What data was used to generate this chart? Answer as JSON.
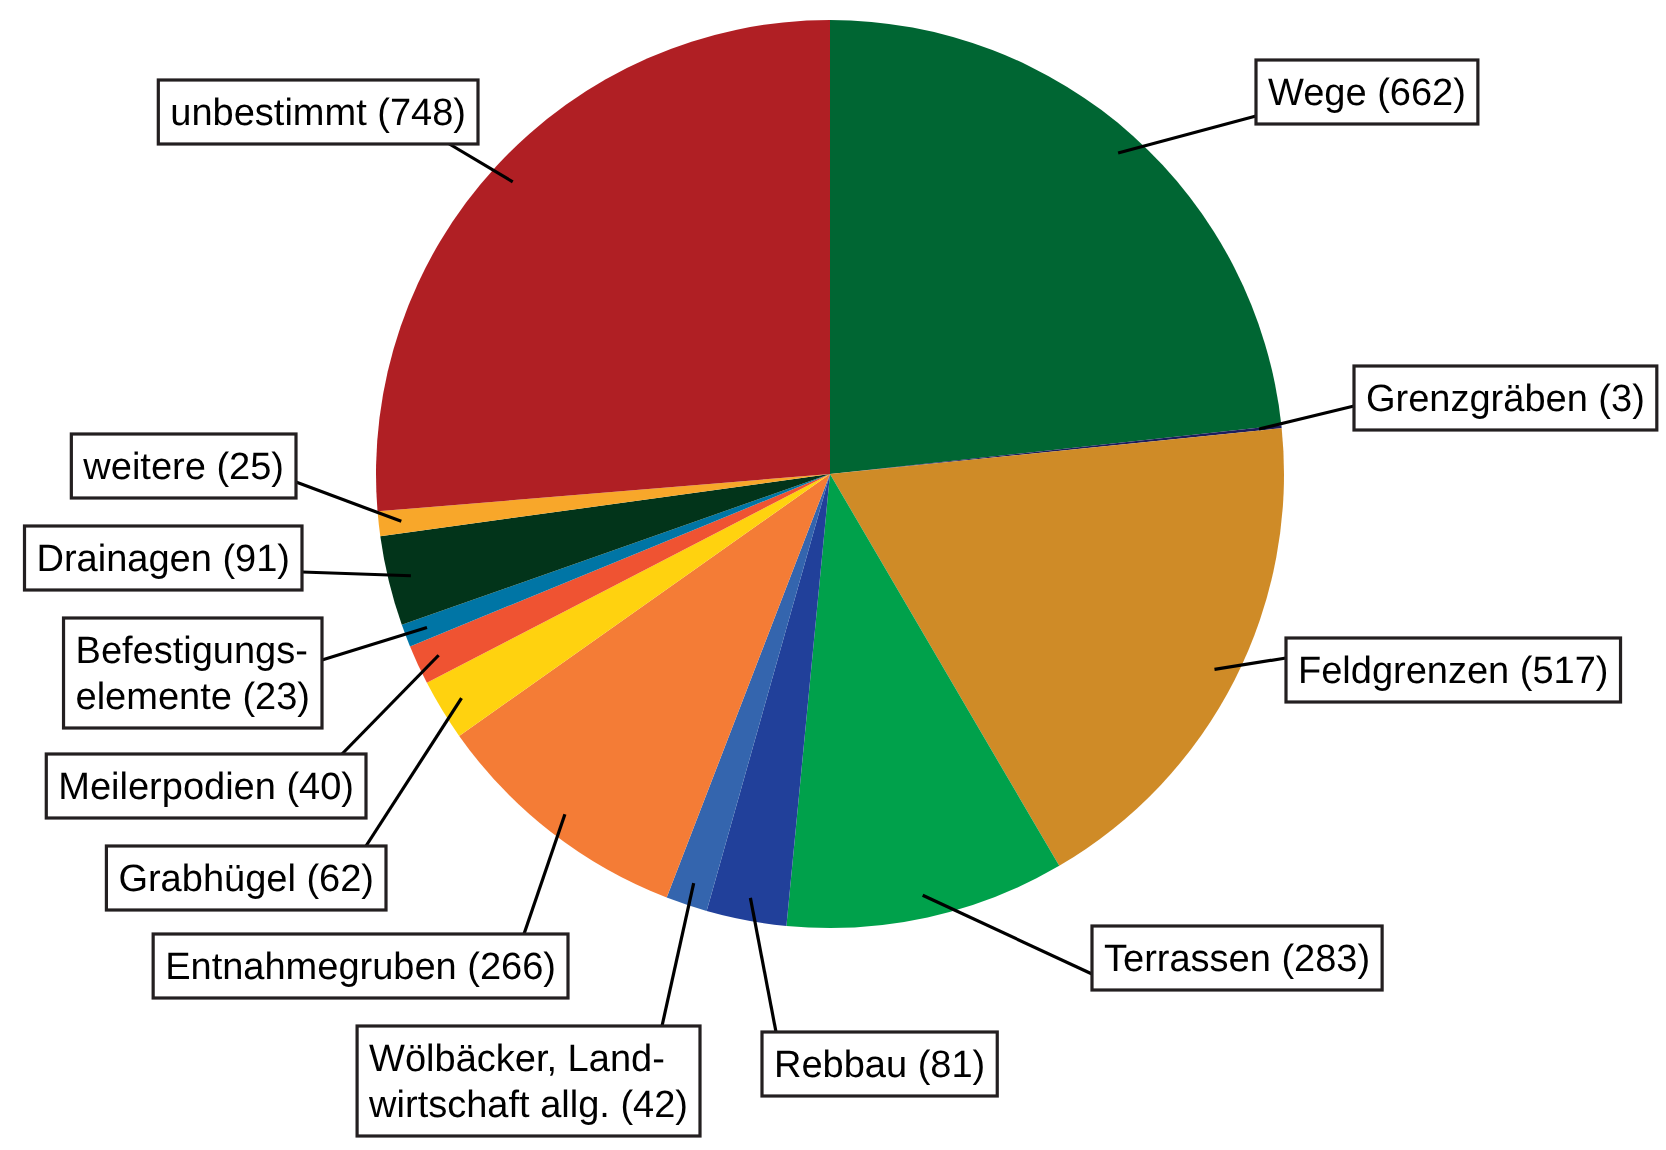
{
  "chart_data": {
    "type": "pie",
    "categories": [
      "Wege (662)",
      "Grenzgräben (3)",
      "Feldgrenzen (517)",
      "Terrassen (283)",
      "Rebbau (81)",
      "Wölbäcker, Land-\nwirtschaft allg. (42)",
      "Entnahmegruben (266)",
      "Grabhügel (62)",
      "Meilerpodien (40)",
      "Befestigungs-\nelemente (23)",
      "Drainagen (91)",
      "weitere (25)",
      "unbestimmt (748)"
    ],
    "values": [
      662,
      3,
      517,
      283,
      81,
      42,
      266,
      62,
      40,
      23,
      91,
      25,
      748
    ],
    "colors": [
      "#006633",
      "#1d1d5e",
      "#cf8b27",
      "#00a14b",
      "#21409a",
      "#3465ae",
      "#f47c36",
      "#ffd20f",
      "#ef5332",
      "#0075a5",
      "#02341a",
      "#f8a72a",
      "#b01f24"
    ]
  }
}
